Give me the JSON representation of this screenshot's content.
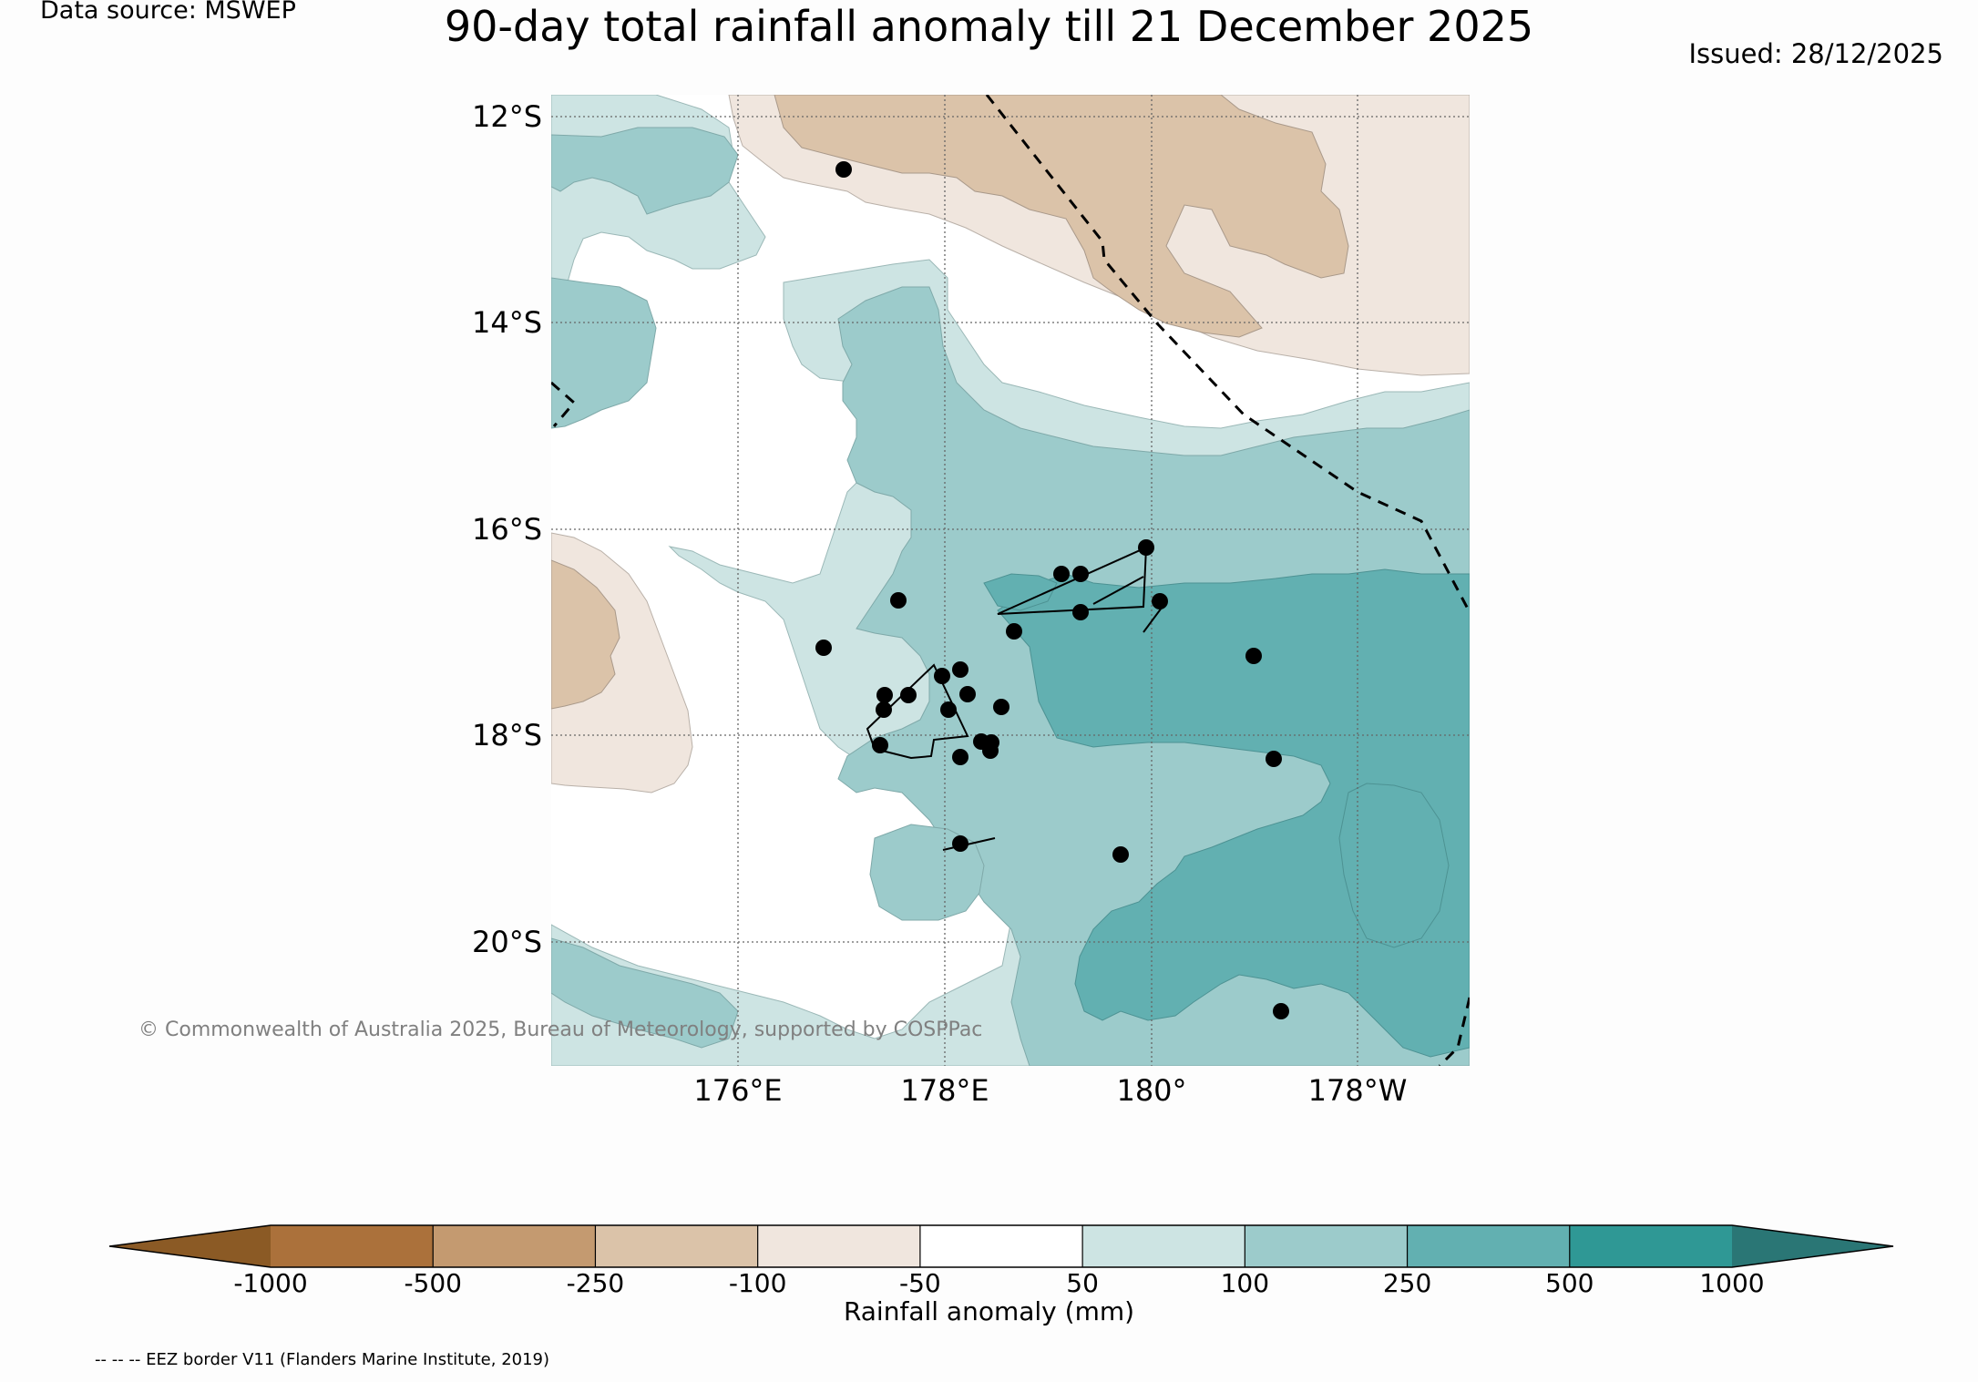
{
  "header": {
    "data_source": "Data source: MSWEP",
    "title": "90-day total rainfall anomaly till 21 December 2025",
    "issued": "Issued: 28/12/2025"
  },
  "map": {
    "lat_labels": [
      "12°S",
      "14°S",
      "16°S",
      "18°S",
      "20°S"
    ],
    "lon_labels": [
      "176°E",
      "178°E",
      "180°",
      "178°W"
    ],
    "copyright": "© Commonwealth of Australia 2025, Bureau of Meteorology, supported by COSPPac",
    "colors": {
      "brown_dark": "#dbc3a9",
      "brown_light": "#f0e6de",
      "teal_light": "#cde4e3",
      "teal_mid": "#9ccbcb",
      "teal_strong": "#62b0b1"
    }
  },
  "colorbar": {
    "title": "Rainfall anomaly (mm)",
    "tick_labels": [
      "-1000",
      "-500",
      "-250",
      "-100",
      "-50",
      "50",
      "100",
      "250",
      "500",
      "1000"
    ],
    "colors": [
      "#8b5a25",
      "#ab713b",
      "#c49a70",
      "#dbc3a9",
      "#f0e6de",
      "#ffffff",
      "#cde4e3",
      "#9ccbcb",
      "#62b0b1",
      "#2f9895",
      "#2a7675"
    ]
  },
  "footer": {
    "eez_note": "-- -- -- EEZ border V11 (Flanders Marine Institute, 2019)"
  }
}
